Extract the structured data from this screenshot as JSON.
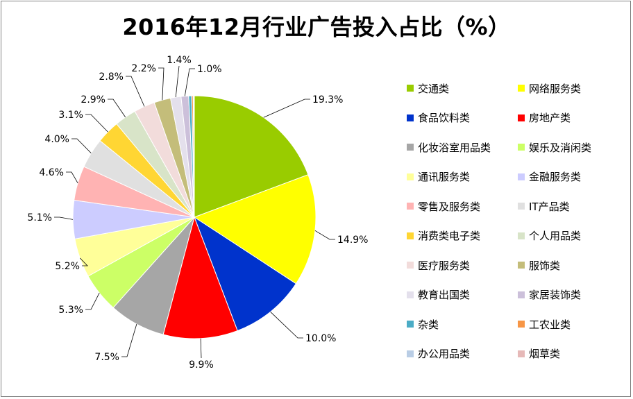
{
  "chart_data": {
    "type": "pie",
    "title": "2016年12月行业广告投入占比（%）",
    "slices": [
      {
        "label": "交通类",
        "value": 19.3,
        "display": "19.3%",
        "color": "#99cc00"
      },
      {
        "label": "网络服务类",
        "value": 14.9,
        "display": "14.9%",
        "color": "#ffff00"
      },
      {
        "label": "食品饮料类",
        "value": 10.0,
        "display": "10.0%",
        "color": "#0033cc"
      },
      {
        "label": "房地产类",
        "value": 9.9,
        "display": "9.9%",
        "color": "#ff0000"
      },
      {
        "label": "化妆浴室用品类",
        "value": 7.5,
        "display": "7.5%",
        "color": "#a6a6a6"
      },
      {
        "label": "娱乐及消闲类",
        "value": 5.3,
        "display": "5.3%",
        "color": "#ccff66"
      },
      {
        "label": "通讯服务类",
        "value": 5.2,
        "display": "5.2%",
        "color": "#ffff99"
      },
      {
        "label": "金融服务类",
        "value": 5.1,
        "display": "5.1%",
        "color": "#ccccff"
      },
      {
        "label": "零售及服务类",
        "value": 4.6,
        "display": "4.6%",
        "color": "#ffb3b3"
      },
      {
        "label": "IT产品类",
        "value": 4.0,
        "display": "4.0%",
        "color": "#e0e0e0"
      },
      {
        "label": "消费类电子类",
        "value": 3.1,
        "display": "3.1%",
        "color": "#ffd633"
      },
      {
        "label": "个人用品类",
        "value": 2.9,
        "display": "2.9%",
        "color": "#d8e4c8"
      },
      {
        "label": "医疗服务类",
        "value": 2.8,
        "display": "2.8%",
        "color": "#f2dcdb"
      },
      {
        "label": "服饰类",
        "value": 2.2,
        "display": "2.2%",
        "color": "#c4bd7a"
      },
      {
        "label": "教育出国类",
        "value": 1.4,
        "display": "1.4%",
        "color": "#e4e0ec"
      },
      {
        "label": "家居装饰类",
        "value": 1.0,
        "display": "1.0%",
        "color": "#ccc0da"
      },
      {
        "label": "杂类",
        "value": 0.4,
        "display": "",
        "color": "#4bacc6"
      },
      {
        "label": "工农业类",
        "value": 0.2,
        "display": "",
        "color": "#f79646"
      },
      {
        "label": "办公用品类",
        "value": 0.1,
        "display": "",
        "color": "#b9cde5"
      },
      {
        "label": "烟草类",
        "value": 0.05,
        "display": "",
        "color": "#e6b9b8"
      }
    ],
    "legend_position": "right"
  }
}
